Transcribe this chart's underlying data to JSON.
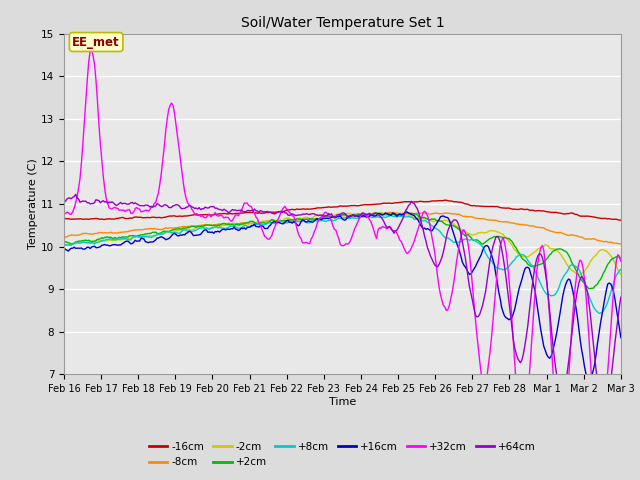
{
  "title": "Soil/Water Temperature Set 1",
  "xlabel": "Time",
  "ylabel": "Temperature (C)",
  "ylim": [
    7.0,
    15.0
  ],
  "yticks": [
    7.0,
    8.0,
    9.0,
    10.0,
    11.0,
    12.0,
    13.0,
    14.0,
    15.0
  ],
  "xtick_labels": [
    "Feb 16",
    "Feb 17",
    "Feb 18",
    "Feb 19",
    "Feb 20",
    "Feb 21",
    "Feb 22",
    "Feb 23",
    "Feb 24",
    "Feb 25",
    "Feb 26",
    "Feb 27",
    "Feb 28",
    "Mar 1",
    "Mar 2",
    "Mar 3"
  ],
  "annotation": "EE_met",
  "annotation_color": "#8B0000",
  "annotation_bg": "#FFFFCC",
  "annotation_edge": "#BBBB00",
  "series_colors": {
    "-16cm": "#CC0000",
    "-8cm": "#FF8800",
    "-2cm": "#CCCC00",
    "+2cm": "#00BB00",
    "+8cm": "#00CCCC",
    "+16cm": "#0000CC",
    "+32cm": "#FF00FF",
    "+64cm": "#9900CC"
  },
  "bg_color": "#E8E8E8",
  "fig_bg": "#DCDCDC",
  "grid_color": "#FFFFFF"
}
